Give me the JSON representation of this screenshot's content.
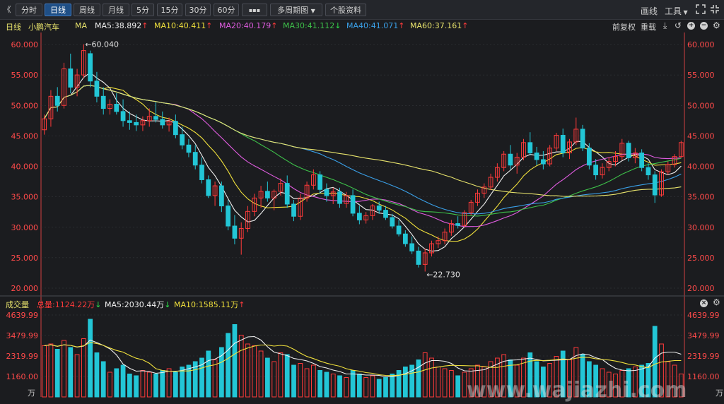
{
  "toolbar": {
    "back": "《",
    "periods": [
      "分时",
      "日线",
      "周线",
      "月线",
      "5分",
      "15分",
      "30分",
      "60分"
    ],
    "active_period": "日线",
    "more": "▪▪▪",
    "multi_period": "多周期图",
    "stock_info": "个股资料",
    "draw": "画线",
    "tools": "工具"
  },
  "ma_bar": {
    "period": "日线",
    "stock_name": "小鹏汽车",
    "ma_label": "MA",
    "items": [
      {
        "text": "MA5:38.892",
        "arrow": "↑",
        "color": "#f0f0f0",
        "arrow_color": "#ff3b3b"
      },
      {
        "text": "MA10:40.411",
        "arrow": "↑",
        "color": "#f0e03c",
        "arrow_color": "#ff3b3b"
      },
      {
        "text": "MA20:40.179",
        "arrow": "↑",
        "color": "#e05ce0",
        "arrow_color": "#ff3b3b"
      },
      {
        "text": "MA30:41.112",
        "arrow": "↓",
        "color": "#3ec24a",
        "arrow_color": "#2ee04a"
      },
      {
        "text": "MA40:41.071",
        "arrow": "↑",
        "color": "#3aa0e8",
        "arrow_color": "#ff3b3b"
      },
      {
        "text": "MA60:37.161",
        "arrow": "↑",
        "color": "#e8e36c",
        "arrow_color": "#ff3b3b"
      }
    ],
    "adjust": "前复权",
    "overlay": "重载"
  },
  "price_axis": {
    "ticks": [
      "60.000",
      "55.000",
      "50.000",
      "45.000",
      "40.000",
      "35.000",
      "30.000",
      "25.000",
      "20.000"
    ]
  },
  "annotations": {
    "high": "←60.040",
    "low": "←22.730"
  },
  "volume_bar": {
    "label": "成交量",
    "total": "总量:1124.22万",
    "total_arrow": "↓",
    "ma5": "MA5:2030.44万",
    "ma5_arrow": "↓",
    "ma10": "MA10:1585.11万",
    "ma10_arrow": "↑"
  },
  "volume_axis": {
    "ticks": [
      "4639.99",
      "3479.99",
      "2319.99",
      "1160.00"
    ],
    "unit": "万"
  },
  "watermark": "www.wajiazhi.com",
  "colors": {
    "up": "#ff3a3a",
    "down": "#23c6d6",
    "grid": "#3a3b40"
  },
  "chart_data": {
    "type": "candlestick",
    "price_range": [
      20,
      60
    ],
    "volume_max": 4639.99,
    "candles": [
      [
        46,
        48.5,
        45.2,
        47.8,
        2900
      ],
      [
        47.8,
        52.5,
        46.5,
        51.5,
        3000
      ],
      [
        51.5,
        53,
        49,
        50,
        2700
      ],
      [
        50,
        57,
        49.5,
        56,
        3200
      ],
      [
        56,
        58.5,
        52,
        53,
        2800
      ],
      [
        53,
        56,
        51.5,
        55,
        2400
      ],
      [
        55,
        60.04,
        54.5,
        59,
        3300
      ],
      [
        58.5,
        59,
        53,
        54,
        4400
      ],
      [
        54,
        55.5,
        50.5,
        51.5,
        2500
      ],
      [
        51.5,
        53,
        48.5,
        49.5,
        2000
      ],
      [
        49.5,
        51,
        48.5,
        50.2,
        1400
      ],
      [
        50.2,
        52,
        48.5,
        49,
        1600
      ],
      [
        49,
        51,
        46.5,
        47.5,
        1800
      ],
      [
        47.5,
        49,
        46,
        47.2,
        1300
      ],
      [
        47.2,
        48.5,
        45.8,
        46.8,
        1200
      ],
      [
        46.8,
        48.2,
        45.8,
        47.5,
        1500
      ],
      [
        47.5,
        49.5,
        46.5,
        48.2,
        1400
      ],
      [
        48.2,
        50.5,
        47.2,
        47.7,
        1300
      ],
      [
        47.7,
        49,
        46.2,
        46.8,
        1500
      ],
      [
        46.8,
        48,
        45.7,
        47.4,
        1600
      ],
      [
        47.4,
        48.5,
        44.6,
        45.2,
        1400
      ],
      [
        45.2,
        46.5,
        42.8,
        43.5,
        1700
      ],
      [
        43.5,
        44.5,
        41.5,
        42.3,
        1800
      ],
      [
        42.3,
        43.5,
        39.5,
        40.2,
        2000
      ],
      [
        40.2,
        41.5,
        37.2,
        37.8,
        2200
      ],
      [
        37.8,
        38.5,
        34.8,
        35.2,
        2600
      ],
      [
        35.2,
        37.5,
        33.5,
        36.8,
        2100
      ],
      [
        36.8,
        37.5,
        32.5,
        33.5,
        2800
      ],
      [
        33.5,
        34.5,
        29.5,
        30.2,
        3600
      ],
      [
        30.2,
        32,
        27.2,
        28.2,
        4100
      ],
      [
        28.2,
        30.8,
        25.5,
        29.8,
        3500
      ],
      [
        29.8,
        33.5,
        29.2,
        32.6,
        3000
      ],
      [
        32.6,
        35.5,
        31.8,
        34.8,
        2900
      ],
      [
        34.8,
        36.8,
        33.2,
        35.9,
        2600
      ],
      [
        35.9,
        37.5,
        34.2,
        34.8,
        2200
      ],
      [
        34.8,
        36.2,
        32.8,
        35.9,
        2000
      ],
      [
        35.9,
        38,
        35.2,
        37.2,
        2500
      ],
      [
        37.2,
        38.5,
        33.2,
        33.8,
        2400
      ],
      [
        33.8,
        34.5,
        31,
        31.8,
        1800
      ],
      [
        31.8,
        35.5,
        31.2,
        34.8,
        1900
      ],
      [
        34.8,
        37.5,
        34.2,
        36.9,
        1600
      ],
      [
        36.9,
        39.5,
        36.2,
        38.6,
        1800
      ],
      [
        38.6,
        39.2,
        35.5,
        36.2,
        1500
      ],
      [
        36.2,
        37.2,
        34.2,
        35.2,
        1400
      ],
      [
        35.2,
        36.5,
        33.8,
        35.8,
        1300
      ],
      [
        35.8,
        36.5,
        33.2,
        33.9,
        1200
      ],
      [
        33.9,
        35.8,
        33.2,
        35.2,
        1100
      ],
      [
        35.2,
        36.2,
        31.8,
        32.3,
        1500
      ],
      [
        32.3,
        33.5,
        30.5,
        31.2,
        1300
      ],
      [
        31.2,
        32.5,
        30.6,
        31.9,
        1100
      ],
      [
        31.9,
        33.8,
        31.2,
        33.5,
        1200
      ],
      [
        33.5,
        34.2,
        32.2,
        32.8,
        1000
      ],
      [
        32.8,
        33.5,
        31.2,
        31.6,
        1100
      ],
      [
        31.6,
        32.2,
        29.8,
        30.2,
        1300
      ],
      [
        30.2,
        31.2,
        28.5,
        28.9,
        1500
      ],
      [
        28.9,
        29.5,
        26.8,
        27.3,
        1700
      ],
      [
        27.3,
        28.5,
        25.6,
        26.1,
        1800
      ],
      [
        26.1,
        26.8,
        23.4,
        23.9,
        2100
      ],
      [
        23.9,
        26.5,
        22.73,
        25.8,
        2500
      ],
      [
        25.8,
        27.8,
        25.2,
        27.3,
        2200
      ],
      [
        27.3,
        28.5,
        26.6,
        27.8,
        1700
      ],
      [
        27.8,
        29.8,
        27.2,
        29.2,
        1600
      ],
      [
        29.2,
        31.2,
        28.6,
        30.6,
        1500
      ],
      [
        30.6,
        31.8,
        29.8,
        30.3,
        1200
      ],
      [
        30.3,
        32.8,
        30,
        32.4,
        1400
      ],
      [
        32.4,
        34.5,
        32,
        34.1,
        1600
      ],
      [
        34.1,
        36.2,
        33.5,
        35.6,
        1800
      ],
      [
        35.6,
        37.2,
        34.8,
        36.6,
        1700
      ],
      [
        36.6,
        38.8,
        36.1,
        38.2,
        2000
      ],
      [
        38.2,
        40.5,
        37.5,
        39.8,
        2200
      ],
      [
        39.8,
        42.5,
        39.2,
        42,
        2400
      ],
      [
        42,
        43.5,
        39.5,
        40.2,
        2100
      ],
      [
        40.2,
        42.2,
        38.8,
        41.5,
        1800
      ],
      [
        41.5,
        44.5,
        41,
        43.9,
        2200
      ],
      [
        43.9,
        45.6,
        41.8,
        42.2,
        2500
      ],
      [
        42.2,
        43.2,
        40.2,
        41.1,
        2000
      ],
      [
        41.1,
        42.5,
        39.5,
        40.4,
        1700
      ],
      [
        40.4,
        43.5,
        40,
        43,
        1900
      ],
      [
        43,
        45.5,
        42.5,
        45.1,
        2300
      ],
      [
        45.1,
        46.2,
        41.5,
        42.2,
        2600
      ],
      [
        42.2,
        44.5,
        41.2,
        44,
        2100
      ],
      [
        44,
        48,
        43.5,
        46.1,
        2800
      ],
      [
        46.1,
        46.8,
        42.5,
        43,
        2400
      ],
      [
        43,
        43.8,
        39.5,
        40.2,
        2000
      ],
      [
        40.2,
        41.2,
        37.8,
        38.6,
        1800
      ],
      [
        38.6,
        40.5,
        38,
        39.8,
        1600
      ],
      [
        39.8,
        41.5,
        39.2,
        40.8,
        1400
      ],
      [
        40.8,
        42.5,
        40,
        41.6,
        1300
      ],
      [
        41.6,
        44.5,
        41,
        43.8,
        1500
      ],
      [
        43.8,
        44.2,
        40.8,
        41.4,
        1600
      ],
      [
        41.4,
        43,
        40.5,
        42.2,
        1700
      ],
      [
        42.2,
        42.8,
        39.2,
        39.8,
        1800
      ],
      [
        39.8,
        40.5,
        37.8,
        38.6,
        1900
      ],
      [
        38.6,
        39.2,
        34,
        35.3,
        4000
      ],
      [
        35.3,
        39.5,
        35,
        39.1,
        3000
      ],
      [
        39.1,
        40.8,
        38.6,
        40.3,
        2000
      ],
      [
        40.3,
        42,
        39.8,
        41.6,
        1800
      ],
      [
        41.6,
        44.2,
        41.4,
        43.9,
        1300
      ]
    ]
  }
}
